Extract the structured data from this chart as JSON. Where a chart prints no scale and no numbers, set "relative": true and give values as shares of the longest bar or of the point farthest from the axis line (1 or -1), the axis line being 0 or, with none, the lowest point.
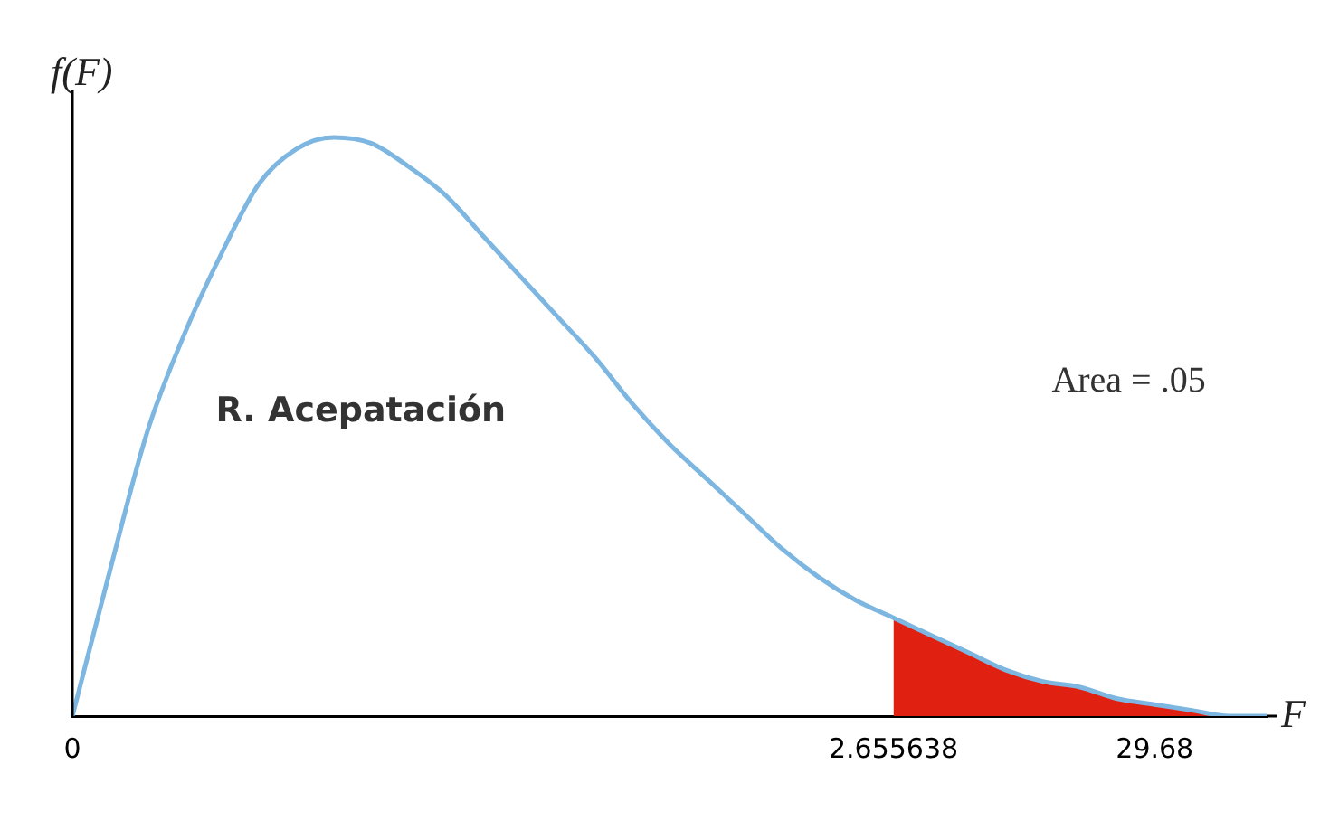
{
  "chart_data": {
    "type": "line",
    "relative": true,
    "xlabel": "F",
    "ylabel": "f(F)",
    "categories": [
      "0",
      null,
      null,
      null,
      null,
      null,
      null,
      null,
      null,
      null,
      null,
      null,
      null,
      null,
      null,
      null,
      null,
      null,
      null,
      null,
      null,
      null,
      "2.655638",
      null,
      null,
      null,
      null,
      null,
      null,
      "29.68",
      null,
      null,
      null
    ],
    "series": [
      {
        "color": "#7db6e0",
        "values": [
          0,
          0.25,
          0.49,
          0.66,
          0.8,
          0.92,
          0.98,
          1,
          0.99,
          0.95,
          0.9,
          0.83,
          0.76,
          0.69,
          0.62,
          0.54,
          0.47,
          0.41,
          0.35,
          0.29,
          0.24,
          0.2,
          0.17,
          0.14,
          0.11,
          0.08,
          0.06,
          0.05,
          0.03,
          0.02,
          0.01,
          0,
          0
        ]
      },
      {
        "type": "area",
        "color": "#e02010",
        "values": [
          null,
          null,
          null,
          null,
          null,
          null,
          null,
          null,
          null,
          null,
          null,
          null,
          null,
          null,
          null,
          null,
          null,
          null,
          null,
          null,
          null,
          null,
          0.17,
          0.14,
          0.11,
          0.08,
          0.06,
          0.05,
          0.03,
          0.02,
          0.01,
          0,
          0
        ]
      }
    ],
    "annotations": [
      "R. Acepatación",
      "Area = .05"
    ],
    "grid": false,
    "legend": false,
    "marker": "none"
  }
}
